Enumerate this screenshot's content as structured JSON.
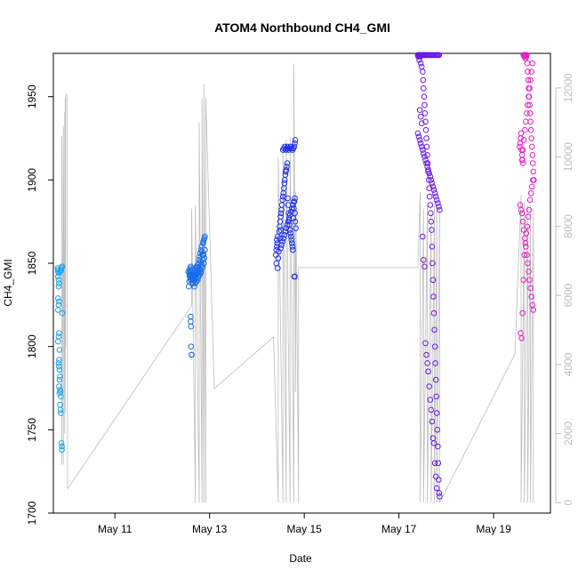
{
  "chart_data": {
    "type": "scatter",
    "title": "ATOM4 Northbound CH4_GMI",
    "xlabel": "Date",
    "ylabel": "CH4_GMI",
    "x_ticks": [
      "May 11",
      "May 13",
      "May 15",
      "May 17",
      "May 19"
    ],
    "x_tick_days": [
      11,
      13,
      15,
      17,
      19
    ],
    "xlim": [
      9.7,
      20.2
    ],
    "ylim": [
      1700,
      1976
    ],
    "y_ticks": [
      1700,
      1750,
      1800,
      1850,
      1900,
      1950
    ],
    "y2lim": [
      -300,
      13000
    ],
    "y2_ticks": [
      0,
      2000,
      4000,
      6000,
      8000,
      10000,
      12000
    ],
    "grid": false,
    "colors": {
      "line": "#bdbdbd",
      "axis": "#000000",
      "axis2": "#bdbdbd"
    },
    "altitude_line": {
      "name": "altitude",
      "x_day": [
        9.88,
        9.88,
        9.91,
        9.91,
        9.94,
        9.94,
        9.95,
        9.95,
        9.96,
        9.96,
        9.99,
        10.0,
        12.62,
        12.62,
        12.7,
        12.7,
        12.78,
        12.78,
        12.84,
        12.84,
        12.88,
        12.88,
        12.92,
        12.92,
        13.1,
        14.35,
        14.45,
        14.45,
        14.55,
        14.55,
        14.62,
        14.62,
        14.7,
        14.7,
        14.78,
        14.78,
        14.82,
        14.82,
        14.88,
        14.88,
        17.4,
        17.45,
        17.45,
        17.52,
        17.52,
        17.6,
        17.6,
        17.68,
        17.68,
        17.75,
        17.75,
        17.8,
        17.8,
        17.86,
        17.86,
        19.45,
        19.58,
        19.58,
        19.65,
        19.65,
        19.72,
        19.72,
        19.78,
        19.78,
        19.84,
        19.84
      ],
      "y_alt": [
        1100,
        10600,
        1100,
        10900,
        2000,
        11300,
        2600,
        11700,
        4500,
        11800,
        11800,
        400,
        5700,
        8500,
        0,
        8600,
        0,
        11000,
        0,
        11700,
        0,
        12100,
        0,
        11700,
        3300,
        4800,
        0,
        10000,
        0,
        10400,
        0,
        10500,
        0,
        10600,
        0,
        12700,
        3200,
        9000,
        0,
        6800,
        6800,
        9000,
        0,
        8500,
        0,
        8600,
        0,
        8400,
        0,
        8600,
        0,
        8600,
        0,
        8500,
        0,
        4300,
        8900,
        0,
        8700,
        0,
        8600,
        0,
        8600,
        0,
        8500,
        0
      ]
    },
    "series": [
      {
        "name": "",
        "color": "#1aa0e8",
        "x_day": [
          9.79,
          9.8,
          9.8,
          9.81,
          9.8,
          9.81,
          9.82,
          9.81,
          9.8,
          9.82,
          9.81,
          9.8,
          9.82,
          9.81,
          9.8,
          9.83,
          9.82,
          9.81,
          9.82,
          9.83,
          9.84,
          9.83,
          9.82,
          9.84,
          9.83,
          9.85,
          9.86,
          9.84,
          9.85,
          9.86,
          9.87,
          9.88,
          9.88,
          9.86,
          9.85,
          9.87,
          9.88,
          9.89,
          9.89
        ],
        "y": [
          1847,
          1846,
          1845,
          1844,
          1842,
          1840,
          1838,
          1836,
          1829,
          1827,
          1825,
          1822,
          1808,
          1806,
          1803,
          1798,
          1792,
          1790,
          1788,
          1786,
          1782,
          1780,
          1776,
          1774,
          1772,
          1773,
          1770,
          1765,
          1762,
          1760,
          1742,
          1740,
          1738,
          1846,
          1845,
          1847,
          1848,
          1848,
          1820
        ]
      },
      {
        "name": "",
        "color": "#1a6ee8",
        "x_day": [
          12.55,
          12.57,
          12.58,
          12.59,
          12.6,
          12.6,
          12.61,
          12.62,
          12.63,
          12.64,
          12.62,
          12.61,
          12.6,
          12.59,
          12.6,
          12.58,
          12.57,
          12.56,
          12.58,
          12.6,
          12.63,
          12.65,
          12.66,
          12.67,
          12.68,
          12.69,
          12.7,
          12.71,
          12.72,
          12.73,
          12.74,
          12.75,
          12.76,
          12.77,
          12.78,
          12.79,
          12.8,
          12.81,
          12.82,
          12.83,
          12.84,
          12.85,
          12.86,
          12.87,
          12.88,
          12.89,
          12.9,
          12.9,
          12.89,
          12.88,
          12.87,
          12.86,
          12.85,
          12.84,
          12.83,
          12.82,
          12.81,
          12.8,
          12.79,
          12.78,
          12.77,
          12.76,
          12.75,
          12.74,
          12.73,
          12.72,
          12.71,
          12.7,
          12.69,
          12.68,
          12.67,
          12.66,
          12.65,
          12.64,
          12.6,
          12.6,
          12.61,
          12.61,
          12.62,
          12.62
        ],
        "y": [
          1845,
          1844,
          1846,
          1843,
          1842,
          1840,
          1841,
          1846,
          1843,
          1840,
          1838,
          1841,
          1845,
          1847,
          1848,
          1842,
          1839,
          1836,
          1843,
          1845,
          1846,
          1844,
          1843,
          1841,
          1840,
          1842,
          1845,
          1843,
          1848,
          1847,
          1846,
          1849,
          1844,
          1850,
          1852,
          1854,
          1856,
          1851,
          1858,
          1860,
          1857,
          1855,
          1862,
          1863,
          1864,
          1865,
          1866,
          1858,
          1853,
          1850,
          1855,
          1852,
          1848,
          1847,
          1849,
          1845,
          1844,
          1846,
          1843,
          1847,
          1842,
          1845,
          1840,
          1848,
          1841,
          1839,
          1844,
          1838,
          1843,
          1836,
          1840,
          1842,
          1838,
          1841,
          1818,
          1815,
          1812,
          1800,
          1795,
          1795
        ]
      },
      {
        "name": "",
        "color": "#1c2ee8",
        "x_day": [
          14.4,
          14.41,
          14.42,
          14.43,
          14.42,
          14.41,
          14.44,
          14.45,
          14.46,
          14.44,
          14.47,
          14.48,
          14.49,
          14.5,
          14.51,
          14.5,
          14.49,
          14.52,
          14.53,
          14.54,
          14.55,
          14.56,
          14.57,
          14.58,
          14.59,
          14.6,
          14.61,
          14.62,
          14.63,
          14.64,
          14.65,
          14.66,
          14.67,
          14.68,
          14.69,
          14.7,
          14.71,
          14.72,
          14.73,
          14.74,
          14.75,
          14.76,
          14.77,
          14.78,
          14.79,
          14.8,
          14.81,
          14.82,
          14.5,
          14.52,
          14.54,
          14.56,
          14.58,
          14.6,
          14.62,
          14.64,
          14.66,
          14.68,
          14.7,
          14.72,
          14.74,
          14.76,
          14.78,
          14.8,
          14.55,
          14.57,
          14.59,
          14.61,
          14.63,
          14.65,
          14.67,
          14.69,
          14.71,
          14.73,
          14.75,
          14.77,
          14.79,
          14.8,
          14.81,
          14.79,
          14.8
        ],
        "y": [
          1855,
          1858,
          1860,
          1862,
          1864,
          1850,
          1847,
          1853,
          1857,
          1866,
          1869,
          1872,
          1875,
          1878,
          1880,
          1870,
          1865,
          1882,
          1885,
          1888,
          1890,
          1892,
          1895,
          1898,
          1900,
          1903,
          1905,
          1906,
          1908,
          1910,
          1889,
          1885,
          1880,
          1876,
          1873,
          1870,
          1868,
          1866,
          1864,
          1862,
          1860,
          1858,
          1877,
          1883,
          1887,
          1880,
          1875,
          1871,
          1859,
          1861,
          1863,
          1865,
          1867,
          1869,
          1871,
          1873,
          1875,
          1877,
          1879,
          1881,
          1883,
          1885,
          1887,
          1889,
          1918,
          1919,
          1920,
          1918,
          1919,
          1920,
          1918,
          1919,
          1920,
          1919,
          1918,
          1919,
          1920,
          1922,
          1924,
          1842,
          1842
        ]
      },
      {
        "name": "",
        "color": "#6a1ae8",
        "x_day": [
          17.4,
          17.41,
          17.42,
          17.43,
          17.44,
          17.45,
          17.46,
          17.47,
          17.48,
          17.49,
          17.5,
          17.51,
          17.52,
          17.53,
          17.54,
          17.55,
          17.56,
          17.57,
          17.58,
          17.59,
          17.6,
          17.61,
          17.62,
          17.63,
          17.64,
          17.65,
          17.66,
          17.67,
          17.68,
          17.69,
          17.7,
          17.71,
          17.72,
          17.73,
          17.74,
          17.75,
          17.76,
          17.77,
          17.78,
          17.79,
          17.8,
          17.81,
          17.82,
          17.83,
          17.84,
          17.85,
          17.86,
          17.4,
          17.42,
          17.44,
          17.46,
          17.48,
          17.5,
          17.52,
          17.54,
          17.56,
          17.58,
          17.6,
          17.62,
          17.64,
          17.66,
          17.68,
          17.7,
          17.72,
          17.74,
          17.76,
          17.78,
          17.8,
          17.82,
          17.84,
          17.86,
          17.41,
          17.43,
          17.45,
          17.47,
          17.49,
          17.51,
          17.53,
          17.55,
          17.57,
          17.59,
          17.61,
          17.63,
          17.65,
          17.67,
          17.69,
          17.71,
          17.73,
          17.75,
          17.77,
          17.79,
          17.81,
          17.83,
          17.85,
          17.44,
          17.46,
          17.48,
          17.5,
          17.52,
          17.54,
          17.56,
          17.58,
          17.6,
          17.62,
          17.64,
          17.66,
          17.68,
          17.7,
          17.72,
          17.74,
          17.76,
          17.78,
          17.8
        ],
        "y": [
          1975,
          1974,
          1975,
          1972,
          1975,
          1974,
          1970,
          1975,
          1968,
          1975,
          1965,
          1960,
          1955,
          1950,
          1945,
          1940,
          1935,
          1930,
          1925,
          1920,
          1915,
          1910,
          1905,
          1900,
          1895,
          1890,
          1885,
          1880,
          1875,
          1870,
          1860,
          1850,
          1840,
          1830,
          1820,
          1810,
          1800,
          1790,
          1780,
          1770,
          1760,
          1750,
          1740,
          1730,
          1720,
          1712,
          1710,
          1928,
          1926,
          1924,
          1922,
          1920,
          1918,
          1916,
          1914,
          1912,
          1910,
          1908,
          1906,
          1904,
          1902,
          1900,
          1898,
          1896,
          1894,
          1892,
          1890,
          1888,
          1886,
          1884,
          1882,
          1975,
          1975,
          1975,
          1975,
          1975,
          1975,
          1975,
          1975,
          1975,
          1975,
          1975,
          1975,
          1975,
          1975,
          1975,
          1975,
          1975,
          1975,
          1975,
          1975,
          1975,
          1975,
          1975,
          1942,
          1938,
          1934,
          1866,
          1852,
          1848,
          1802,
          1795,
          1790,
          1785,
          1776,
          1768,
          1762,
          1755,
          1745,
          1742,
          1730,
          1722,
          1715
        ]
      },
      {
        "name": "",
        "color": "#e81ac8",
        "x_day": [
          19.55,
          19.56,
          19.57,
          19.58,
          19.59,
          19.6,
          19.61,
          19.62,
          19.63,
          19.64,
          19.65,
          19.66,
          19.67,
          19.68,
          19.69,
          19.7,
          19.71,
          19.72,
          19.73,
          19.74,
          19.75,
          19.76,
          19.77,
          19.78,
          19.79,
          19.8,
          19.81,
          19.82,
          19.83,
          19.84,
          19.85,
          19.56,
          19.58,
          19.6,
          19.62,
          19.64,
          19.66,
          19.68,
          19.7,
          19.72,
          19.74,
          19.76,
          19.78,
          19.8,
          19.82,
          19.84,
          19.57,
          19.59,
          19.61,
          19.63,
          19.65,
          19.67,
          19.69,
          19.71,
          19.73,
          19.75,
          19.77,
          19.79,
          19.81,
          19.83,
          19.6,
          19.62,
          19.64,
          19.66,
          19.68,
          19.7,
          19.72,
          19.74,
          19.76,
          19.78,
          19.8,
          19.82
        ],
        "y": [
          1920,
          1922,
          1925,
          1928,
          1918,
          1915,
          1912,
          1910,
          1975,
          1975,
          1974,
          1975,
          1973,
          1975,
          1974,
          1975,
          1970,
          1965,
          1960,
          1955,
          1950,
          1945,
          1940,
          1935,
          1930,
          1925,
          1920,
          1915,
          1910,
          1905,
          1900,
          1885,
          1882,
          1880,
          1875,
          1870,
          1865,
          1860,
          1855,
          1850,
          1845,
          1840,
          1835,
          1830,
          1825,
          1822,
          1808,
          1805,
          1820,
          1840,
          1855,
          1862,
          1868,
          1872,
          1878,
          1882,
          1888,
          1892,
          1896,
          1900,
          1912,
          1918,
          1924,
          1930,
          1935,
          1940,
          1945,
          1950,
          1955,
          1960,
          1965,
          1970
        ]
      }
    ]
  }
}
